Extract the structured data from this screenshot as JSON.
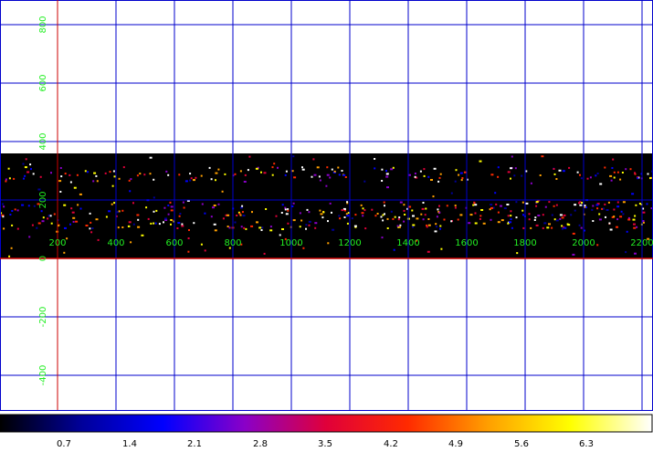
{
  "x_ticks": [
    "200",
    "400",
    "600",
    "800",
    "1000",
    "1200",
    "1400",
    "1600",
    "1800",
    "2000",
    "2200"
  ],
  "y_ticks": [
    "800",
    "600",
    "400",
    "200",
    "0",
    "-200",
    "-400"
  ],
  "colorbar": {
    "labels": [
      "0.7",
      "1.4",
      "2.1",
      "2.8",
      "3.5",
      "4.2",
      "4.9",
      "5.6",
      "6.3"
    ],
    "colors": [
      "#000000",
      "#00009a",
      "#0000ff",
      "#8a00c8",
      "#e0003a",
      "#ff2a00",
      "#ffa000",
      "#ffff00",
      "#ffffff"
    ]
  },
  "theme": {
    "grid_color": "#0000cc",
    "axis_color": "#cc0000",
    "label_color": "#22ee22",
    "image_bg": "#000000"
  }
}
